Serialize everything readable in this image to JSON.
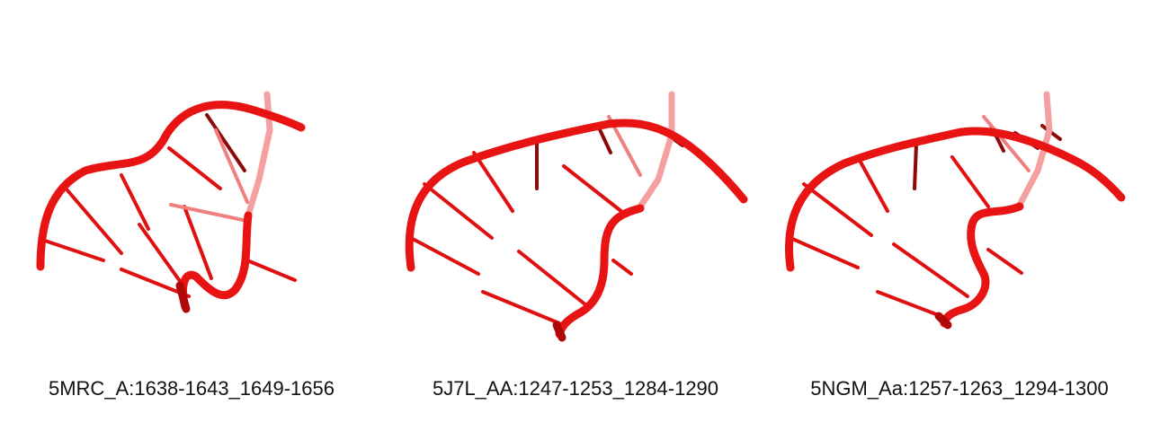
{
  "panels": [
    {
      "label": "5MRC_A:1638-1643_1649-1656"
    },
    {
      "label": "5J7L_AA:1247-1253_1284-1290"
    },
    {
      "label": "5NGM_Aa:1257-1263_1294-1300"
    }
  ],
  "colors": {
    "backbone": "#e81414",
    "backbone_shadow": "#b00808",
    "base_rung": "#e01010",
    "background": "#ffffff",
    "caption": "#111111"
  }
}
